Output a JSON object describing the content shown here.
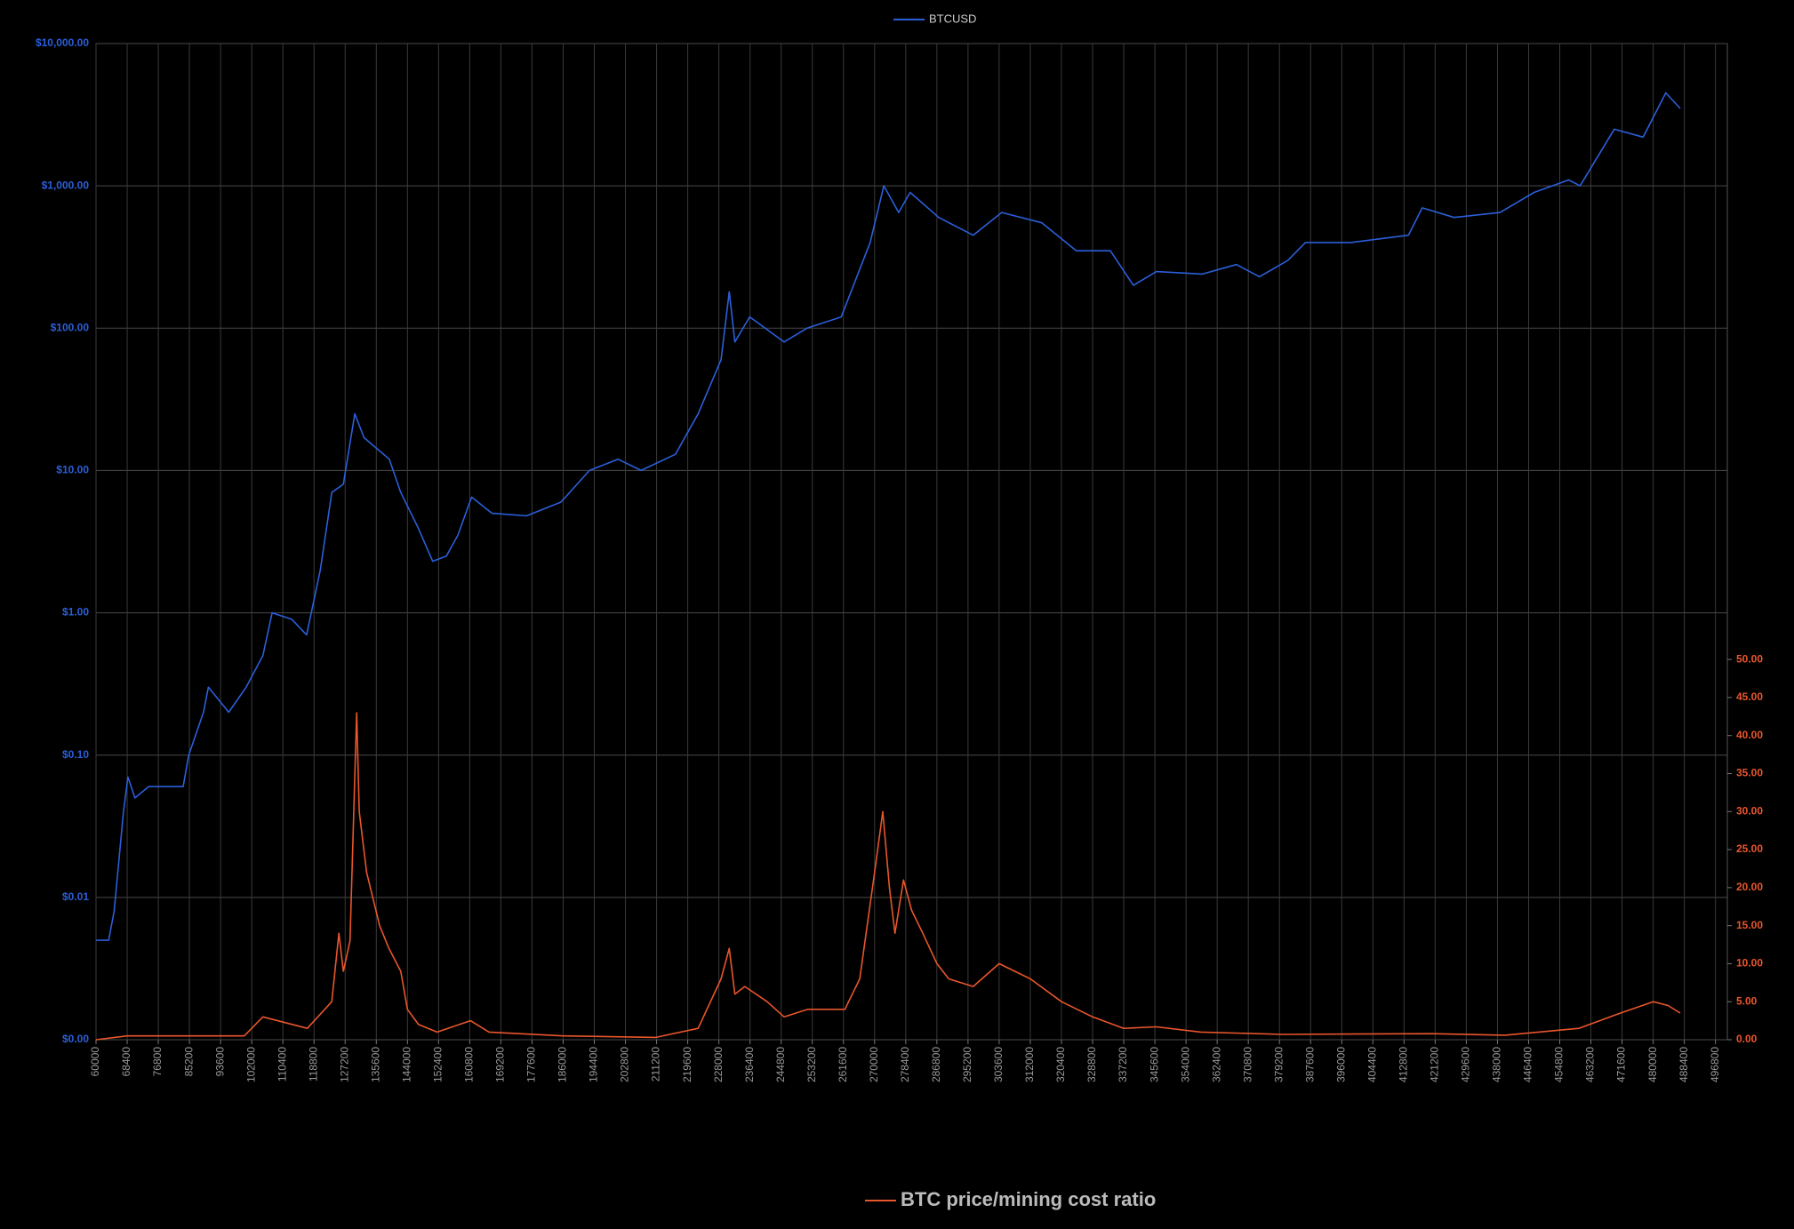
{
  "chart_data": {
    "type": "line",
    "log_y": true,
    "grid": true,
    "xlim": [
      60000,
      500000
    ],
    "xticks": [
      60000,
      68400,
      76800,
      85200,
      93600,
      102000,
      110400,
      118800,
      127200,
      135600,
      144000,
      152400,
      160800,
      169200,
      177600,
      186000,
      194400,
      202800,
      211200,
      219600,
      228000,
      236400,
      244800,
      253200,
      261600,
      270000,
      278400,
      286800,
      295200,
      303600,
      312000,
      320400,
      328800,
      337200,
      345600,
      354000,
      362400,
      370800,
      379200,
      387600,
      396000,
      404400,
      412800,
      421200,
      429600,
      438000,
      446400,
      454800,
      463200,
      471600,
      480000,
      488400,
      496800
    ],
    "ylim": [
      0.001,
      10000
    ],
    "yticks": [
      {
        "value": 0.001,
        "label": "$0.00"
      },
      {
        "value": 0.01,
        "label": "$0.01"
      },
      {
        "value": 0.1,
        "label": "$0.10"
      },
      {
        "value": 1,
        "label": "$1.00"
      },
      {
        "value": 10,
        "label": "$10.00"
      },
      {
        "value": 100,
        "label": "$100.00"
      },
      {
        "value": 1000,
        "label": "$1,000.00"
      },
      {
        "value": 10000,
        "label": "$10,000.00"
      }
    ],
    "y2lim": [
      0,
      131
    ],
    "y2ticks": [
      {
        "value": 0,
        "label": "0.00"
      },
      {
        "value": 5,
        "label": "5.00"
      },
      {
        "value": 10,
        "label": "10.00"
      },
      {
        "value": 15,
        "label": "15.00"
      },
      {
        "value": 20,
        "label": "20.00"
      },
      {
        "value": 25,
        "label": "25.00"
      },
      {
        "value": 30,
        "label": "30.00"
      },
      {
        "value": 35,
        "label": "35.00"
      },
      {
        "value": 40,
        "label": "40.00"
      },
      {
        "value": 45,
        "label": "45.00"
      },
      {
        "value": 50,
        "label": "50.00"
      }
    ],
    "series": [
      {
        "name": "BTCUSD",
        "color": "#2b5fd9",
        "legend": "top",
        "x": [
          60000,
          63400,
          64900,
          67400,
          68600,
          70500,
          74200,
          83500,
          85000,
          89000,
          90300,
          95800,
          100500,
          105000,
          107500,
          112800,
          116800,
          120500,
          123600,
          126700,
          129800,
          132300,
          139100,
          142200,
          146800,
          150800,
          154500,
          157600,
          161300,
          166800,
          176100,
          185400,
          193100,
          200800,
          207000,
          216300,
          222400,
          228600,
          230800,
          232300,
          236300,
          245600,
          251800,
          261000,
          268800,
          272500,
          276500,
          279600,
          287300,
          296600,
          304300,
          315100,
          324400,
          333600,
          339800,
          346000,
          358400,
          367600,
          373800,
          381500,
          386200,
          398500,
          414000,
          417700,
          426300,
          438700,
          447900,
          457200,
          460300,
          469500,
          477300,
          483400,
          487300
        ],
        "values": [
          0.005,
          0.005,
          0.008,
          0.04,
          0.07,
          0.05,
          0.06,
          0.06,
          0.1,
          0.2,
          0.3,
          0.2,
          0.3,
          0.5,
          1.0,
          0.9,
          0.7,
          2,
          7,
          8,
          25,
          17,
          12,
          7,
          4,
          2.3,
          2.5,
          3.5,
          6.5,
          5,
          4.8,
          6,
          10,
          12,
          10,
          13,
          25,
          60,
          180,
          80,
          120,
          80,
          100,
          120,
          400,
          1000,
          650,
          900,
          600,
          450,
          650,
          550,
          350,
          350,
          200,
          250,
          240,
          280,
          230,
          300,
          400,
          400,
          450,
          700,
          600,
          650,
          900,
          1100,
          1000,
          2500,
          2200,
          4500,
          3500
        ]
      },
      {
        "name": "BTC price/mining cost ratio",
        "color": "#e8562c",
        "axis": "y2",
        "legend": "bottom",
        "x": [
          60000,
          68400,
          100000,
          105000,
          117000,
          123600,
          125500,
          126700,
          128500,
          130300,
          131000,
          133000,
          136500,
          139000,
          142200,
          144000,
          147000,
          152000,
          161000,
          166000,
          186000,
          211000,
          222400,
          228600,
          230800,
          232300,
          235000,
          241000,
          245600,
          252000,
          262000,
          266000,
          270000,
          272200,
          274000,
          275500,
          277800,
          280000,
          283000,
          286800,
          290000,
          296600,
          303600,
          312000,
          320400,
          328800,
          337200,
          346000,
          358000,
          380000,
          420000,
          440000,
          460000,
          470000,
          480000,
          484000,
          487300
        ],
        "values": [
          0,
          0.5,
          0.5,
          3,
          1.5,
          5,
          14,
          9,
          13,
          43,
          30,
          22,
          15,
          12,
          9,
          4,
          2,
          1,
          2.5,
          1,
          0.5,
          0.3,
          1.5,
          8,
          12,
          6,
          7,
          5,
          3,
          4,
          4,
          8,
          22,
          30,
          20,
          14,
          21,
          17,
          14,
          10,
          8,
          7,
          10,
          8,
          5,
          3,
          1.5,
          1.7,
          1,
          0.7,
          0.8,
          0.6,
          1.5,
          3.3,
          5,
          4.5,
          3.5
        ]
      }
    ]
  }
}
